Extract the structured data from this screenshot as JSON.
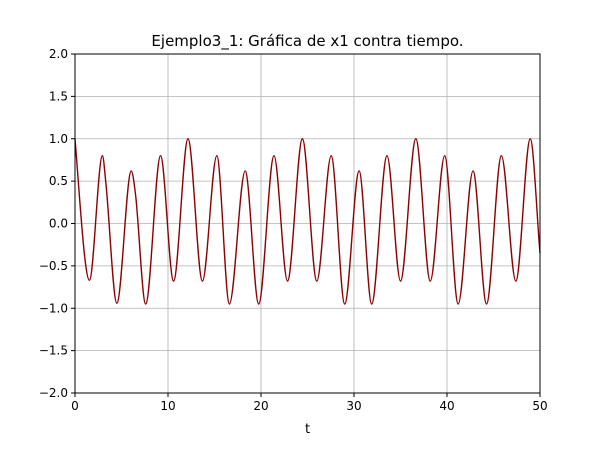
{
  "chart_data": {
    "type": "line",
    "title": "Ejemplo3_1: Gráfica de x1 contra tiempo.",
    "xlabel": "t",
    "ylabel": "",
    "xlim": [
      0,
      50
    ],
    "ylim": [
      -2.0,
      2.0
    ],
    "x_ticks": [
      "0",
      "10",
      "20",
      "30",
      "40",
      "50"
    ],
    "y_ticks": [
      "2.0",
      "1.5",
      "1.0",
      "0.5",
      "0.0",
      "−0.5",
      "−1.0",
      "−1.5",
      "−2.0"
    ],
    "grid": true,
    "legend": "none",
    "series": [
      {
        "color": "#8b0000",
        "x": [
          0,
          1.05,
          1.55,
          2.95,
          3.3,
          4.5,
          6.05,
          6.5,
          7.6,
          9.2,
          10.6,
          12.15,
          13.7,
          15.25,
          16.6,
          18.3,
          19.75,
          21.4,
          22.85,
          24.45,
          26.0,
          27.55,
          29.0,
          30.55,
          31.9,
          33.55,
          35.0,
          36.65,
          38.2,
          39.75,
          41.2,
          42.8,
          44.25,
          45.85,
          47.4,
          48.95,
          50
        ],
        "y": [
          1.0,
          -0.4,
          -0.67,
          0.8,
          0.5,
          -0.94,
          0.62,
          0.35,
          -0.95,
          0.8,
          -0.68,
          1.0,
          -0.68,
          0.8,
          -0.95,
          0.62,
          -0.95,
          0.8,
          -0.68,
          1.0,
          -0.68,
          0.8,
          -0.95,
          0.62,
          -0.95,
          0.8,
          -0.68,
          1.0,
          -0.68,
          0.8,
          -0.95,
          0.62,
          -0.95,
          0.8,
          -0.68,
          1.0,
          -0.35
        ]
      }
    ]
  }
}
